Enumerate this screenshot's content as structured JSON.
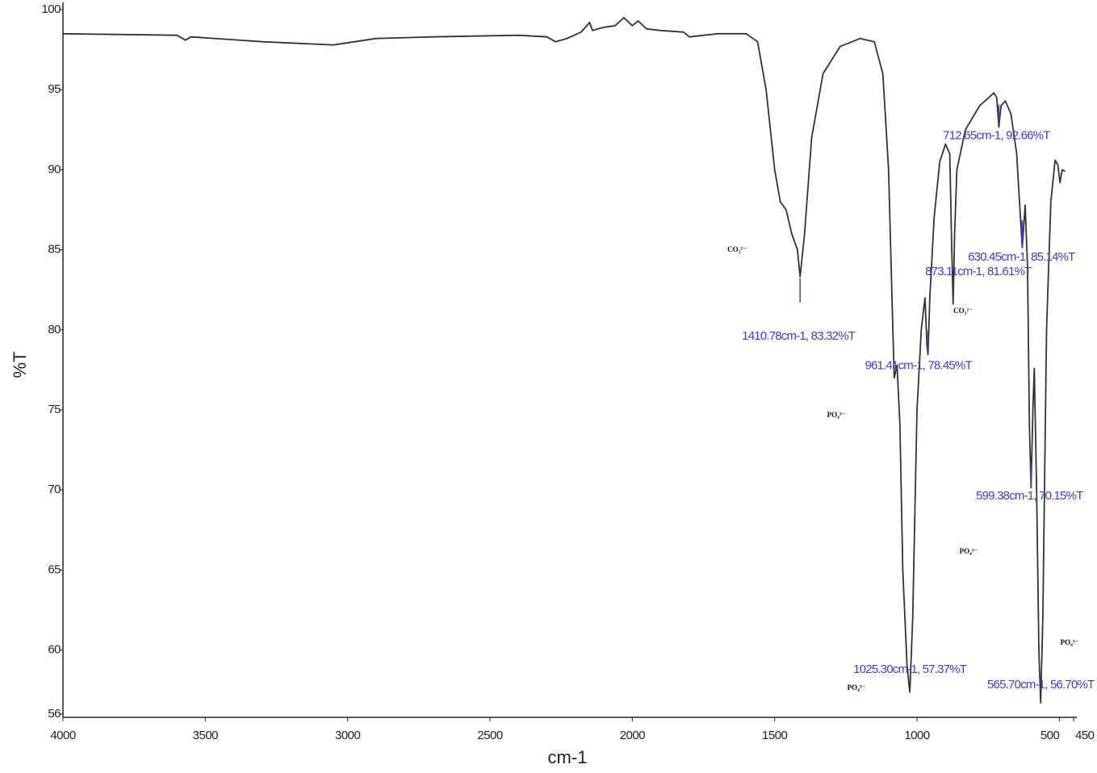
{
  "chart_data": {
    "type": "line",
    "x_label": "cm-1",
    "y_label": "%T",
    "xlim": [
      4000,
      450
    ],
    "ylim": [
      56,
      100
    ],
    "xticks": [
      4000,
      3500,
      3000,
      2500,
      2000,
      1500,
      1000,
      500,
      450
    ],
    "yticks": [
      56,
      60,
      65,
      70,
      75,
      80,
      85,
      90,
      95,
      100
    ],
    "color": "#333333",
    "x": [
      4000,
      3600,
      3570,
      3550,
      3300,
      3050,
      2900,
      2700,
      2400,
      2300,
      2270,
      2230,
      2180,
      2150,
      2140,
      2100,
      2060,
      2030,
      2000,
      1980,
      1950,
      1900,
      1820,
      1800,
      1700,
      1600,
      1560,
      1530,
      1500,
      1480,
      1460,
      1440,
      1420,
      1410.78,
      1395,
      1370,
      1330,
      1270,
      1200,
      1150,
      1120,
      1100,
      1085,
      1080,
      1070,
      1060,
      1050,
      1035,
      1025.3,
      1015,
      1000,
      985,
      972,
      965,
      961.41,
      955,
      940,
      920,
      900,
      885,
      878,
      873.11,
      868,
      860,
      830,
      780,
      730,
      720,
      712.65,
      705,
      690,
      670,
      650,
      640,
      630.45,
      620,
      612,
      605,
      599.38,
      593,
      588,
      580,
      572,
      565.7,
      558,
      545,
      530,
      515,
      505,
      498,
      490,
      480
    ],
    "values": [
      98.5,
      98.4,
      98.1,
      98.3,
      98.0,
      97.8,
      98.2,
      98.3,
      98.4,
      98.3,
      98.0,
      98.2,
      98.6,
      99.2,
      98.7,
      98.9,
      99.0,
      99.5,
      99.0,
      99.3,
      98.8,
      98.7,
      98.6,
      98.3,
      98.5,
      98.5,
      98.0,
      95.0,
      90.0,
      88.0,
      87.5,
      86.0,
      85.0,
      83.32,
      86.0,
      92.0,
      96.0,
      97.7,
      98.2,
      98.0,
      96.0,
      90.0,
      80.0,
      77.0,
      77.8,
      74.0,
      65.0,
      59.0,
      57.37,
      62.0,
      75.0,
      80.0,
      82.0,
      79.0,
      78.45,
      82.0,
      87.0,
      90.5,
      91.6,
      91.0,
      85.0,
      81.61,
      86.0,
      90.0,
      92.5,
      94.0,
      94.8,
      94.5,
      92.66,
      94.0,
      94.3,
      93.5,
      91.0,
      88.0,
      85.14,
      87.8,
      84.0,
      74.0,
      70.15,
      75.0,
      77.6,
      70.0,
      60.0,
      56.7,
      62.0,
      80.0,
      88.0,
      90.6,
      90.3,
      89.2,
      90.0,
      89.9
    ],
    "peaks": [
      {
        "x": 1410.78,
        "y": 83.32,
        "label": "1410.78cm-1, 83.32%T"
      },
      {
        "x": 1025.3,
        "y": 57.37,
        "label": "1025.30cm-1, 57.37%T"
      },
      {
        "x": 961.41,
        "y": 78.45,
        "label": "961.41cm-1, 78.45%T"
      },
      {
        "x": 873.11,
        "y": 81.61,
        "label": "873.11cm-1, 81.61%T"
      },
      {
        "x": 712.65,
        "y": 92.66,
        "label": "712.65cm-1, 92.66%T"
      },
      {
        "x": 630.45,
        "y": 85.14,
        "label": "630.45cm-1, 85.14%T"
      },
      {
        "x": 599.38,
        "y": 70.15,
        "label": "599.38cm-1, 70.15%T"
      },
      {
        "x": 565.7,
        "y": 56.7,
        "label": "565.70cm-1, 56.70%T"
      }
    ],
    "annotations": [
      "CO₃²⁻",
      "CO₃²⁻",
      "PO₄³⁻",
      "PO₄³⁻",
      "PO₄³⁻",
      "PO₄³⁻"
    ]
  }
}
